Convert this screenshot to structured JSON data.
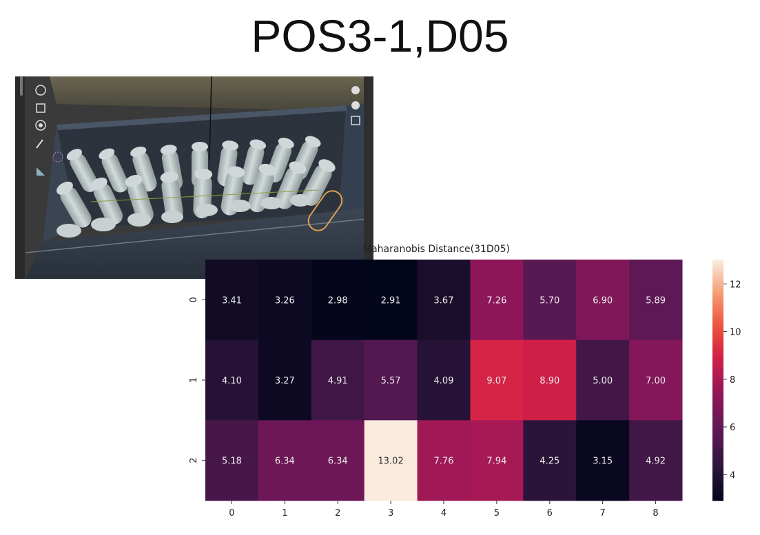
{
  "slide": {
    "title": "POS3-1,D05"
  },
  "viewport_image": {
    "toolbar_left_icons": [
      "rotate-icon",
      "scale-icon",
      "transform-icon",
      "annotate-icon",
      "measure-icon"
    ],
    "toolbar_right_icons": [
      "hand-icon",
      "camera-icon",
      "grid-icon"
    ]
  },
  "chart_data": {
    "type": "heatmap",
    "title": "Maharanobis Distance(31D05)",
    "x_ticks": [
      "0",
      "1",
      "2",
      "3",
      "4",
      "5",
      "6",
      "7",
      "8"
    ],
    "y_ticks": [
      "0",
      "1",
      "2"
    ],
    "values": [
      [
        3.41,
        3.26,
        2.98,
        2.91,
        3.67,
        7.26,
        5.7,
        6.9,
        5.89
      ],
      [
        4.1,
        3.27,
        4.91,
        5.57,
        4.09,
        9.07,
        8.9,
        5.0,
        7.0
      ],
      [
        5.18,
        6.34,
        6.34,
        13.02,
        7.76,
        7.94,
        4.25,
        3.15,
        4.92
      ]
    ],
    "cell_labels": [
      [
        "3.41",
        "3.26",
        "2.98",
        "2.91",
        "3.67",
        "7.26",
        "5.70",
        "6.90",
        "5.89"
      ],
      [
        "4.10",
        "3.27",
        "4.91",
        "5.57",
        "4.09",
        "9.07",
        "8.90",
        "5.00",
        "7.00"
      ],
      [
        "5.18",
        "6.34",
        "6.34",
        "13.02",
        "7.76",
        "7.94",
        "4.25",
        "3.15",
        "4.92"
      ]
    ],
    "colorbar": {
      "min": 2.91,
      "max": 13.02,
      "ticks": [
        "4",
        "6",
        "8",
        "10",
        "12"
      ],
      "tick_values": [
        4,
        6,
        8,
        10,
        12
      ]
    },
    "colormap": "rocket",
    "legend_position": "right"
  }
}
